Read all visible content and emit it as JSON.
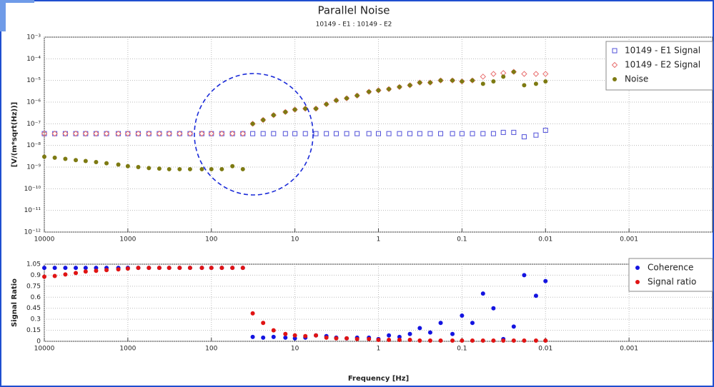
{
  "chart_data": [
    {
      "type": "scatter",
      "title": "Parallel Noise",
      "subtitle": "10149 - E1 : 10149 - E2",
      "y_label": "[V/(m*sqrt(Hz))]",
      "xlog": true,
      "ylog": true,
      "grid": true,
      "legend": "upper right",
      "xlim": [
        10000,
        0.0001
      ],
      "xticks": [
        10000,
        1000,
        100,
        10,
        1,
        0.1,
        0.01,
        0.001
      ],
      "ylim": [
        1e-12,
        0.001
      ],
      "yticks": [
        {
          "value": 1e-12,
          "label": "10⁻¹²"
        },
        {
          "value": 1e-11,
          "label": "10⁻¹¹"
        },
        {
          "value": 1e-10,
          "label": "10⁻¹⁰"
        },
        {
          "value": 1e-09,
          "label": "10⁻⁹"
        },
        {
          "value": 1e-08,
          "label": "10⁻⁸"
        },
        {
          "value": 1e-07,
          "label": "10⁻⁷"
        },
        {
          "value": 1e-06,
          "label": "10⁻⁶"
        },
        {
          "value": 1e-05,
          "label": "10⁻⁵"
        },
        {
          "value": 0.0001,
          "label": "10⁻⁴"
        },
        {
          "value": 0.001,
          "label": "10⁻³"
        }
      ],
      "x": [
        10000,
        7500,
        5600,
        4200,
        3200,
        2400,
        1800,
        1300,
        1000,
        750,
        560,
        420,
        320,
        240,
        180,
        130,
        100,
        75,
        56,
        42,
        32,
        24,
        18,
        13,
        10,
        7.5,
        5.6,
        4.2,
        3.2,
        2.4,
        1.8,
        1.3,
        1,
        0.75,
        0.56,
        0.42,
        0.32,
        0.24,
        0.18,
        0.13,
        0.1,
        0.075,
        0.056,
        0.042,
        0.032,
        0.024,
        0.018,
        0.013,
        0.01
      ],
      "series": [
        {
          "name": "10149 - E1 Signal",
          "color": "#5050d8",
          "marker": "square-open",
          "values": [
            3.5e-08,
            3.5e-08,
            3.5e-08,
            3.5e-08,
            3.5e-08,
            3.5e-08,
            3.5e-08,
            3.5e-08,
            3.5e-08,
            3.5e-08,
            3.5e-08,
            3.5e-08,
            3.5e-08,
            3.5e-08,
            3.5e-08,
            3.5e-08,
            3.5e-08,
            3.5e-08,
            3.5e-08,
            3.5e-08,
            3.5e-08,
            3.5e-08,
            3.5e-08,
            3.5e-08,
            3.5e-08,
            3.5e-08,
            3.5e-08,
            3.5e-08,
            3.5e-08,
            3.5e-08,
            3.5e-08,
            3.5e-08,
            3.5e-08,
            3.5e-08,
            3.5e-08,
            3.5e-08,
            3.5e-08,
            3.5e-08,
            3.5e-08,
            3.5e-08,
            3.5e-08,
            3.5e-08,
            3.5e-08,
            3.5e-08,
            4e-08,
            4e-08,
            2.5e-08,
            3e-08,
            5e-08
          ]
        },
        {
          "name": "10149 - E2 Signal",
          "color": "#e87070",
          "marker": "diamond-open",
          "values": [
            3.5e-08,
            3.5e-08,
            3.5e-08,
            3.5e-08,
            3.5e-08,
            3.5e-08,
            3.5e-08,
            3.5e-08,
            3.5e-08,
            3.5e-08,
            3.5e-08,
            3.5e-08,
            3.5e-08,
            3.5e-08,
            3.5e-08,
            3.5e-08,
            3.5e-08,
            3.5e-08,
            3.5e-08,
            3.5e-08,
            1e-07,
            1.5e-07,
            2.5e-07,
            3.5e-07,
            4.5e-07,
            5e-07,
            5e-07,
            8e-07,
            1.2e-06,
            1.5e-06,
            2e-06,
            3e-06,
            3.5e-06,
            4e-06,
            5e-06,
            6e-06,
            8e-06,
            8e-06,
            1e-05,
            1e-05,
            9e-06,
            1e-05,
            1.5e-05,
            2e-05,
            2.2e-05,
            2.5e-05,
            2e-05,
            2e-05,
            2e-05
          ]
        },
        {
          "name": "Noise",
          "color": "#7d7a12",
          "marker": "circle",
          "values": [
            3e-09,
            2.7e-09,
            2.4e-09,
            2.1e-09,
            1.9e-09,
            1.7e-09,
            1.5e-09,
            1.3e-09,
            1.1e-09,
            1e-09,
            9e-10,
            8.5e-10,
            8e-10,
            8e-10,
            8e-10,
            8e-10,
            8e-10,
            8e-10,
            1.1e-09,
            8e-10,
            1e-07,
            1.5e-07,
            2.5e-07,
            3.5e-07,
            4.5e-07,
            5e-07,
            5e-07,
            8e-07,
            1.2e-06,
            1.5e-06,
            2e-06,
            3e-06,
            3.5e-06,
            4e-06,
            5e-06,
            6e-06,
            8e-06,
            8e-06,
            1e-05,
            1e-05,
            9e-06,
            1e-05,
            7e-06,
            9e-06,
            1.5e-05,
            2.5e-05,
            6e-06,
            7e-06,
            9e-06
          ]
        }
      ]
    },
    {
      "type": "scatter",
      "x_label": "Frequency [Hz]",
      "y_label": "Signal Ratio",
      "xlog": true,
      "ylog": false,
      "grid": true,
      "legend": "upper right",
      "xlim": [
        10000,
        0.0001
      ],
      "xticks": [
        10000,
        1000,
        100,
        10,
        1,
        0.1,
        0.01,
        0.001
      ],
      "ylim": [
        0,
        1.05
      ],
      "yticks": [
        0,
        0.15,
        0.3,
        0.45,
        0.6,
        0.75,
        0.9,
        1.05
      ],
      "x": [
        10000,
        7500,
        5600,
        4200,
        3200,
        2400,
        1800,
        1300,
        1000,
        750,
        560,
        420,
        320,
        240,
        180,
        130,
        100,
        75,
        56,
        42,
        32,
        24,
        18,
        13,
        10,
        7.5,
        5.6,
        4.2,
        3.2,
        2.4,
        1.8,
        1.3,
        1,
        0.75,
        0.56,
        0.42,
        0.32,
        0.24,
        0.18,
        0.13,
        0.1,
        0.075,
        0.056,
        0.042,
        0.032,
        0.024,
        0.018,
        0.013,
        0.01
      ],
      "series": [
        {
          "name": "Coherence",
          "color": "#1414e0",
          "marker": "circle",
          "values": [
            1,
            1,
            1,
            1,
            1,
            1,
            1,
            1,
            1,
            1,
            1,
            1,
            1,
            1,
            1,
            1,
            1,
            1,
            1,
            1,
            0.06,
            0.05,
            0.06,
            0.05,
            0.04,
            0.05,
            0.08,
            0.07,
            0.05,
            0.04,
            0.05,
            0.05,
            0.03,
            0.08,
            0.06,
            0.1,
            0.18,
            0.12,
            0.25,
            0.1,
            0.35,
            0.25,
            0.65,
            0.45,
            0.03,
            0.2,
            0.9,
            0.62,
            0.82
          ]
        },
        {
          "name": "Signal ratio",
          "color": "#e01414",
          "marker": "circle",
          "values": [
            0.88,
            0.89,
            0.91,
            0.93,
            0.95,
            0.96,
            0.97,
            0.98,
            0.99,
            1,
            1,
            1,
            1,
            1,
            1,
            1,
            1,
            1,
            1,
            1,
            0.38,
            0.25,
            0.15,
            0.1,
            0.08,
            0.07,
            0.08,
            0.05,
            0.04,
            0.04,
            0.03,
            0.03,
            0.02,
            0.02,
            0.02,
            0.02,
            0.01,
            0.01,
            0.01,
            0.01,
            0.01,
            0.01,
            0.01,
            0.01,
            0.01,
            0.01,
            0.01,
            0.01,
            0.01
          ]
        }
      ]
    }
  ]
}
